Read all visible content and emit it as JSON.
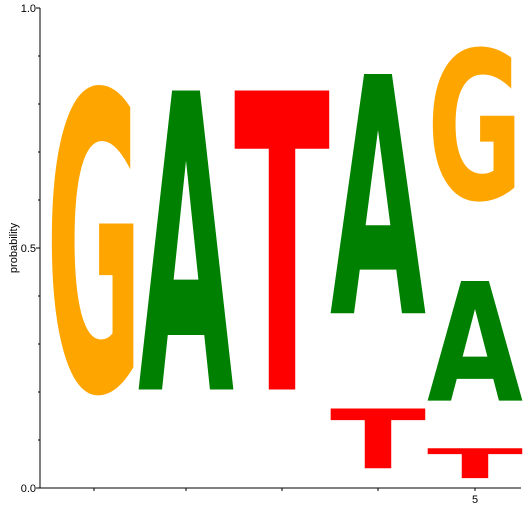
{
  "chart_data": {
    "type": "sequence-logo",
    "ylabel": "probability",
    "ylim": [
      0,
      1
    ],
    "yticks": [
      "0.0",
      "0.5",
      "1.0"
    ],
    "xtick_labels": [
      {
        "position": 5,
        "label": "5"
      }
    ],
    "positions": [
      {
        "position": 1,
        "stack": [
          {
            "letter": "G",
            "value": 1.0
          }
        ]
      },
      {
        "position": 2,
        "stack": [
          {
            "letter": "A",
            "value": 1.0
          }
        ]
      },
      {
        "position": 3,
        "stack": [
          {
            "letter": "T",
            "value": 1.0
          }
        ]
      },
      {
        "position": 4,
        "stack": [
          {
            "letter": "T",
            "value": 0.2
          },
          {
            "letter": "A",
            "value": 0.8
          }
        ]
      },
      {
        "position": 5,
        "stack": [
          {
            "letter": "T",
            "value": 0.1
          },
          {
            "letter": "A",
            "value": 0.4
          },
          {
            "letter": "G",
            "value": 0.5
          }
        ]
      }
    ],
    "colors": {
      "G": "#ffa500",
      "A": "#008000",
      "T": "#ff0000",
      "C": "#0000ff"
    }
  }
}
